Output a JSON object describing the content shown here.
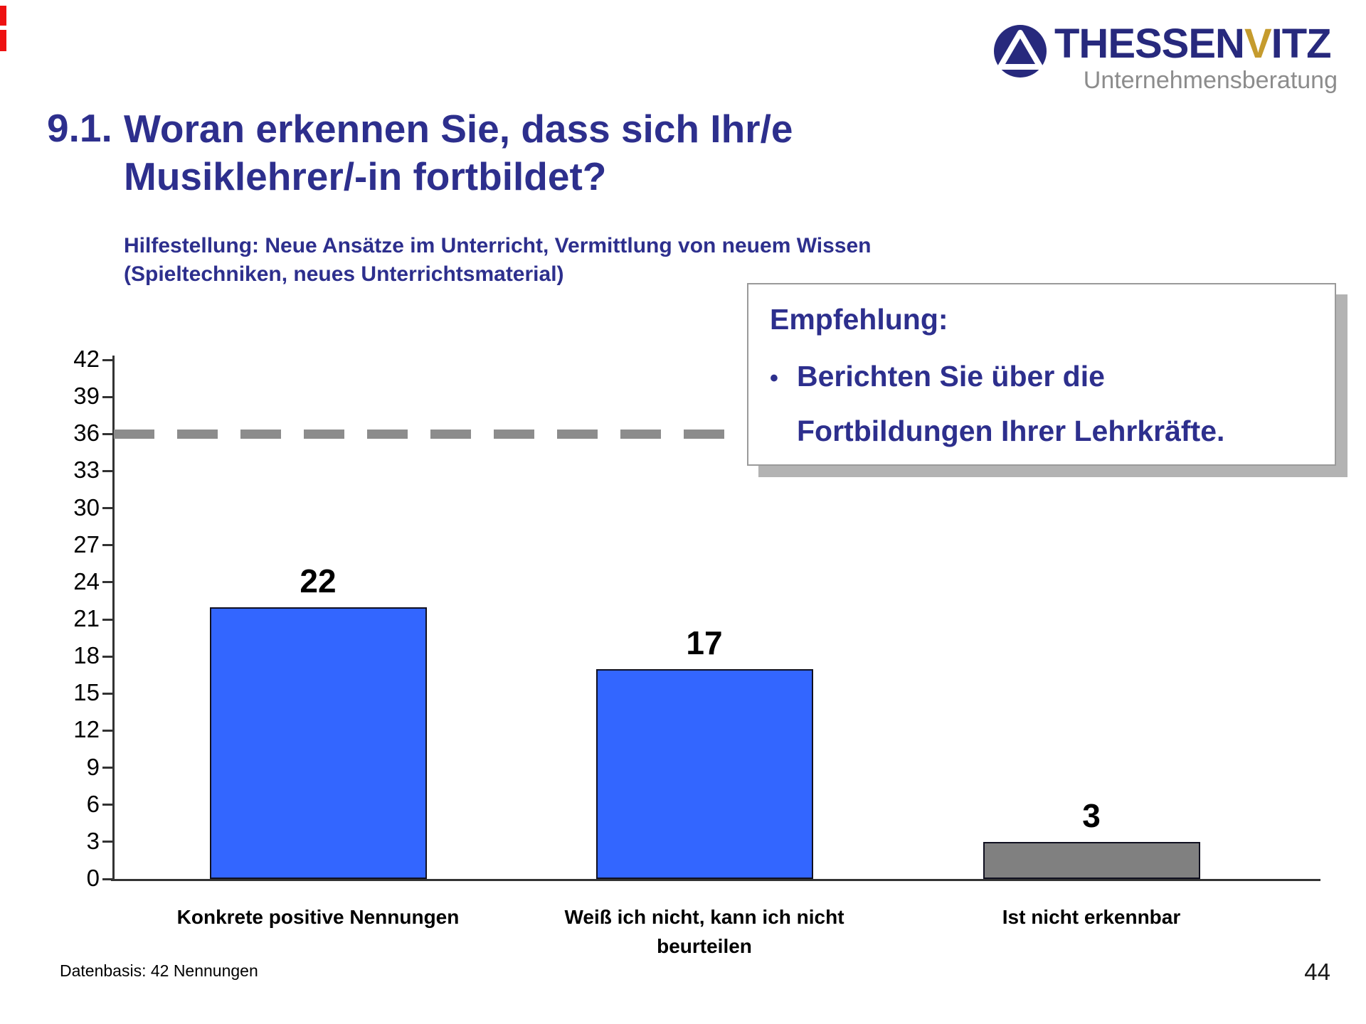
{
  "logo": {
    "icon": "triangle-circle-icon",
    "name_part1": "THESSEN",
    "name_part2": "V",
    "name_part3": "ITZ",
    "subtitle": "Unternehmensberatung"
  },
  "title": {
    "number": "9.1.",
    "line1": "Woran erkennen Sie, dass sich Ihr/e",
    "line2": "Musiklehrer/-in fortbildet?",
    "subtitle_line1": "Hilfestellung: Neue Ansätze im Unterricht, Vermittlung von neuem Wissen",
    "subtitle_line2": "(Spieltechniken, neues Unterrichtsmaterial)"
  },
  "recommendation": {
    "heading": "Empfehlung:",
    "bullet": "•",
    "line1": "Berichten Sie über die",
    "line2": "Fortbildungen Ihrer Lehrkräfte."
  },
  "chart_data": {
    "type": "bar",
    "title": "",
    "xlabel": "",
    "ylabel": "",
    "categories": [
      "Konkrete positive Nennungen",
      "Weiß ich nicht, kann ich nicht beurteilen",
      "Ist nicht erkennbar"
    ],
    "category_lines": [
      [
        "Konkrete positive Nennungen"
      ],
      [
        "Weiß ich nicht, kann ich nicht",
        "beurteilen"
      ],
      [
        "Ist nicht erkennbar"
      ]
    ],
    "values": [
      22,
      17,
      3
    ],
    "bar_colors": [
      "#3366FF",
      "#3366FF",
      "#808080"
    ],
    "ylim": [
      0,
      42
    ],
    "yticks": [
      0,
      3,
      6,
      9,
      12,
      15,
      18,
      21,
      24,
      27,
      30,
      33,
      36,
      39,
      42
    ],
    "reference_line": 36,
    "reference_line_style": "thick gray dashed",
    "grid": false,
    "legend": false
  },
  "footer": {
    "datenbasis": "Datenbasis: 42 Nennungen",
    "page": "44"
  },
  "colors": {
    "title_navy": "#2D2F8D",
    "bar_blue": "#3366FF",
    "bar_gray": "#808080",
    "dash_gray": "#8C8C8C",
    "logo_navy": "#27297D",
    "logo_gold": "#C59B2D",
    "shadow_gray": "#B3B3B3",
    "edge_red": "#EE1111"
  }
}
